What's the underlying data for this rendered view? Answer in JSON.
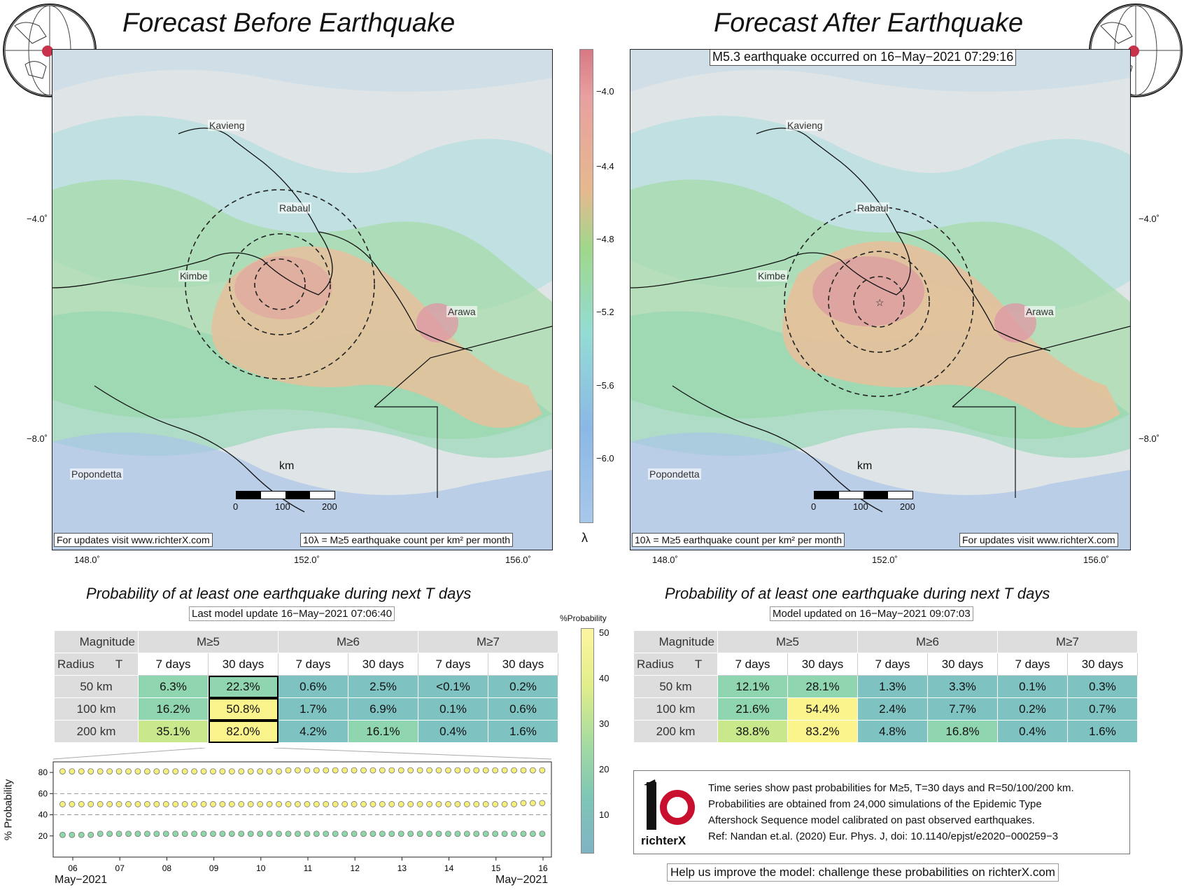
{
  "left_panel": {
    "title": "Forecast Before Earthquake",
    "cities": [
      "Kavieng",
      "Rabaul",
      "Kimbe",
      "Arawa",
      "Popondetta"
    ],
    "lat_labels": [
      "−4.0˚",
      "−8.0˚"
    ],
    "lon_labels": [
      "148.0˚",
      "152.0˚",
      "156.0˚"
    ],
    "scale_unit": "km",
    "scale_ticks": [
      "0",
      "100",
      "200"
    ],
    "note_updates": "For updates visit www.richterX.com",
    "note_lambda": "10λ = M≥5 earthquake count per km² per month"
  },
  "right_panel": {
    "title": "Forecast After Earthquake",
    "event_note": "M5.3 earthquake occurred on 16−May−2021 07:29:16",
    "cities": [
      "Kavieng",
      "Rabaul",
      "Kimbe",
      "Arawa",
      "Popondetta"
    ],
    "lat_labels": [
      "−4.0˚",
      "−8.0˚"
    ],
    "lon_labels": [
      "148.0˚",
      "152.0˚",
      "156.0˚"
    ],
    "scale_unit": "km",
    "scale_ticks": [
      "0",
      "100",
      "200"
    ],
    "note_updates": "For updates visit www.richterX.com",
    "note_lambda": "10λ = M≥5 earthquake count per km² per month"
  },
  "lambda_colorbar": {
    "ticks": [
      "−4.0",
      "−4.4",
      "−4.8",
      "−5.2",
      "−5.6",
      "−6.0"
    ],
    "label": "λ"
  },
  "left_table": {
    "title": "Probability of at least one earthquake during next T days",
    "subtitle": "Last model update 16−May−2021 07:06:40",
    "corner_top": "Magnitude",
    "corner_radius": "Radius",
    "corner_t": "T",
    "mag_headers": [
      "M≥5",
      "M≥6",
      "M≥7"
    ],
    "day_headers": [
      "7 days",
      "30 days",
      "7 days",
      "30 days",
      "7 days",
      "30 days"
    ],
    "rows": [
      {
        "radius": "50 km",
        "values": [
          "6.3%",
          "22.3%",
          "0.6%",
          "2.5%",
          "<0.1%",
          "0.2%"
        ]
      },
      {
        "radius": "100 km",
        "values": [
          "16.2%",
          "50.8%",
          "1.7%",
          "6.9%",
          "0.1%",
          "0.6%"
        ]
      },
      {
        "radius": "200 km",
        "values": [
          "35.1%",
          "82.0%",
          "4.2%",
          "16.1%",
          "0.4%",
          "1.6%"
        ]
      }
    ]
  },
  "right_table": {
    "title": "Probability of at least one earthquake during next T days",
    "subtitle": "Model updated on 16−May−2021 09:07:03",
    "corner_top": "Magnitude",
    "corner_radius": "Radius",
    "corner_t": "T",
    "mag_headers": [
      "M≥5",
      "M≥6",
      "M≥7"
    ],
    "day_headers": [
      "7 days",
      "30 days",
      "7 days",
      "30 days",
      "7 days",
      "30 days"
    ],
    "rows": [
      {
        "radius": "50 km",
        "values": [
          "12.1%",
          "28.1%",
          "1.3%",
          "3.3%",
          "0.1%",
          "0.3%"
        ]
      },
      {
        "radius": "100 km",
        "values": [
          "21.6%",
          "54.4%",
          "2.4%",
          "7.7%",
          "0.2%",
          "0.7%"
        ]
      },
      {
        "radius": "200 km",
        "values": [
          "38.8%",
          "83.2%",
          "4.8%",
          "16.8%",
          "0.4%",
          "1.6%"
        ]
      }
    ]
  },
  "prob_colorbar": {
    "label": "%Probability",
    "ticks": [
      "50",
      "40",
      "30",
      "20",
      "10"
    ]
  },
  "chart_data": {
    "type": "scatter",
    "title": "",
    "ylabel": "% Probability",
    "xlabel_left": "May−2021",
    "xlabel_right": "May−2021",
    "x": [
      "06",
      "07",
      "08",
      "09",
      "10",
      "11",
      "12",
      "13",
      "14",
      "15",
      "16"
    ],
    "ylim": [
      0,
      90
    ],
    "yticks": [
      20,
      40,
      60,
      80
    ],
    "grid_y": [
      40,
      60
    ],
    "series": [
      {
        "values": [
          81,
          81,
          81,
          81,
          81,
          82,
          82,
          82,
          82,
          82,
          82
        ],
        "color": "#f4ee7a"
      },
      {
        "values": [
          50,
          50,
          50,
          50,
          50,
          50,
          50,
          50,
          50,
          50,
          51
        ],
        "color": "#f4ee7a"
      },
      {
        "values": [
          21,
          22,
          22,
          22,
          22,
          22,
          22,
          22,
          22,
          22,
          22
        ],
        "color": "#8fd6a8"
      }
    ]
  },
  "info_box": {
    "logo_text": "richterX",
    "lines": [
      "Time series show past probabilities for M≥5, T=30 days and R=50/100/200 km.",
      "Probabilities are obtained from 24,000 simulations of the Epidemic Type",
      "Aftershock Sequence model calibrated on past observed earthquakes.",
      "Ref: Nandan et.al. (2020) Eur. Phys. J, doi: 10.1140/epjst/e2020−000259−3"
    ]
  },
  "help_text": "Help us improve the model: challenge these probabilities on richterX.com",
  "colors": {
    "red_marker": "#c8324a",
    "teal": "#7fc2c2",
    "green": "#8fd6b0",
    "yellow": "#fbf38c"
  }
}
